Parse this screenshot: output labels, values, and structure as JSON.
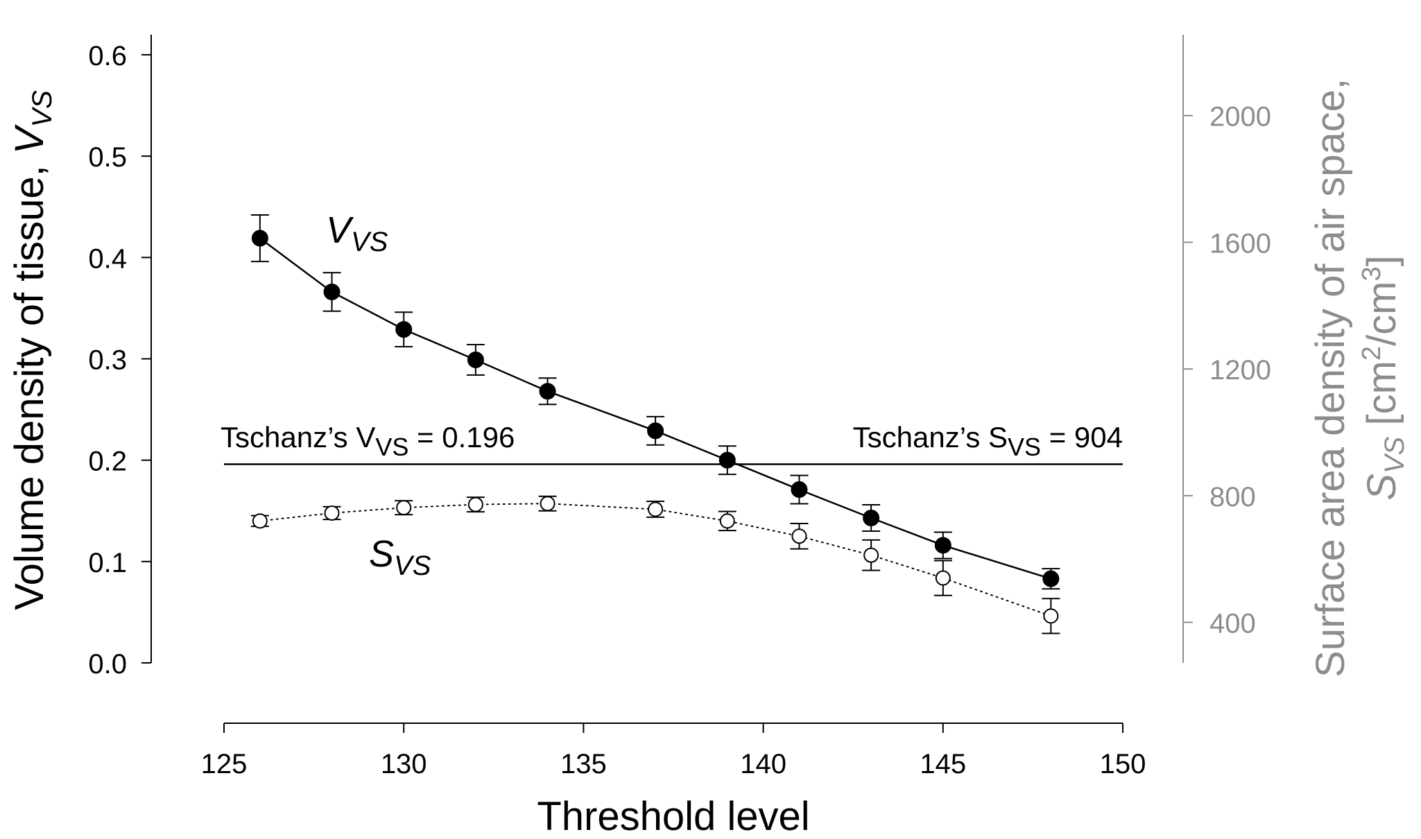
{
  "chart_data": {
    "type": "line",
    "x": [
      126,
      128,
      130,
      132,
      134,
      137,
      139,
      141,
      143,
      145,
      148
    ],
    "xlabel": "Threshold level",
    "xlim": [
      125,
      150
    ],
    "xticks": [
      125,
      130,
      135,
      140,
      145,
      150
    ],
    "ylabel_left": {
      "text": "Volume density of tissue, ",
      "var": "V",
      "sub": "VS"
    },
    "ylim_left": [
      0,
      0.6
    ],
    "yticks_left": [
      "0.0",
      "0.1",
      "0.2",
      "0.3",
      "0.4",
      "0.5",
      "0.6"
    ],
    "ylabel_right": {
      "line1": "Surface area density of air space,",
      "var": "S",
      "sub": "VS",
      "unit_pre": " [cm",
      "sup1": "2",
      "unit_mid": "/cm",
      "sup2": "3",
      "unit_post": "]"
    },
    "ylim_right": [
      272,
      2192
    ],
    "yticks_right": [
      "400",
      "800",
      "1200",
      "1600",
      "2000"
    ],
    "series": [
      {
        "var": "V",
        "sub": "VS",
        "axis": "left",
        "marker": "filled-circle",
        "line_style": "solid",
        "color": "#000000",
        "values": [
          0.419,
          0.366,
          0.329,
          0.299,
          0.268,
          0.229,
          0.2,
          0.171,
          0.143,
          0.116,
          0.083
        ],
        "err": [
          0.023,
          0.019,
          0.017,
          0.015,
          0.013,
          0.014,
          0.014,
          0.014,
          0.013,
          0.013,
          0.01
        ]
      },
      {
        "var": "S",
        "sub": "VS",
        "axis": "right",
        "marker": "open-circle",
        "line_style": "dotted",
        "color": "#000000",
        "values": [
          720,
          745,
          762,
          772,
          775,
          757,
          720,
          672,
          612,
          540,
          420
        ],
        "err": [
          17,
          20,
          22,
          23,
          23,
          25,
          30,
          40,
          48,
          55,
          55
        ]
      }
    ],
    "reference_line": {
      "y_left": 0.196,
      "label_left": {
        "pre": "Tschanz’s V",
        "sub": "VS",
        "post": " = 0.196"
      },
      "label_right": {
        "pre": "Tschanz’s S",
        "sub": "VS",
        "post": " = 904"
      }
    },
    "grid": false,
    "legend": "none"
  },
  "colors": {
    "left_axis": "#000000",
    "right_axis": "#8c8c8c"
  }
}
